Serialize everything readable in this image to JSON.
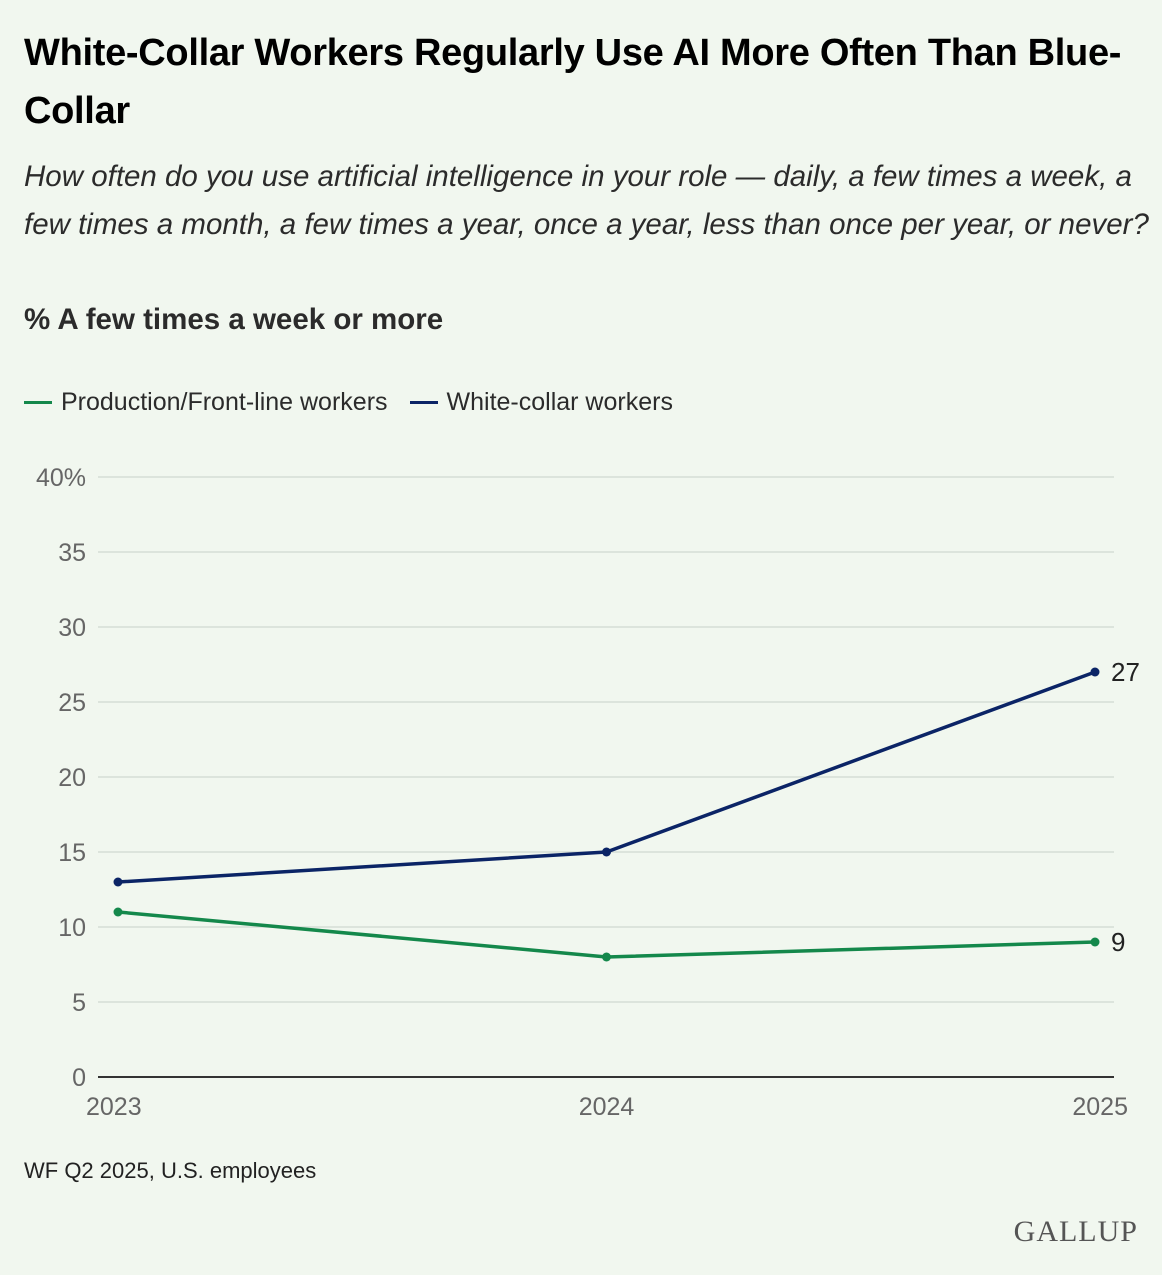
{
  "header": {
    "title": "White-Collar Workers Regularly Use AI More Often Than Blue-Collar",
    "subtitle": "How often do you use artificial intelligence in your role — daily, a few times a week, a few times a month, a few times a year, once a year, less than once per year, or never?",
    "measure": "% A few times a week or more"
  },
  "legend": {
    "items": [
      {
        "label": "Production/Front-line workers",
        "color": "#14884b"
      },
      {
        "label": "White-collar workers",
        "color": "#0b2466"
      }
    ]
  },
  "chart_data": {
    "type": "line",
    "x": [
      "2023",
      "2024",
      "2025"
    ],
    "ylim": [
      0,
      40
    ],
    "yticks": [
      0,
      5,
      10,
      15,
      20,
      25,
      30,
      35,
      40
    ],
    "ytick_labels": [
      "0",
      "5",
      "10",
      "15",
      "20",
      "25",
      "30",
      "35",
      "40%"
    ],
    "grid": true,
    "legend_position": "top-left",
    "series": [
      {
        "name": "Production/Front-line workers",
        "color": "#14884b",
        "values": [
          11,
          8,
          9
        ],
        "end_label": "9"
      },
      {
        "name": "White-collar workers",
        "color": "#0b2466",
        "values": [
          13,
          15,
          27
        ],
        "end_label": "27"
      }
    ]
  },
  "footer": {
    "source": "WF Q2 2025, U.S. employees",
    "logo": "GALLUP"
  },
  "colors": {
    "background": "#f1f7ef",
    "gridline": "#d6ddd6",
    "axis": "#333333",
    "tick_label": "#666666"
  }
}
